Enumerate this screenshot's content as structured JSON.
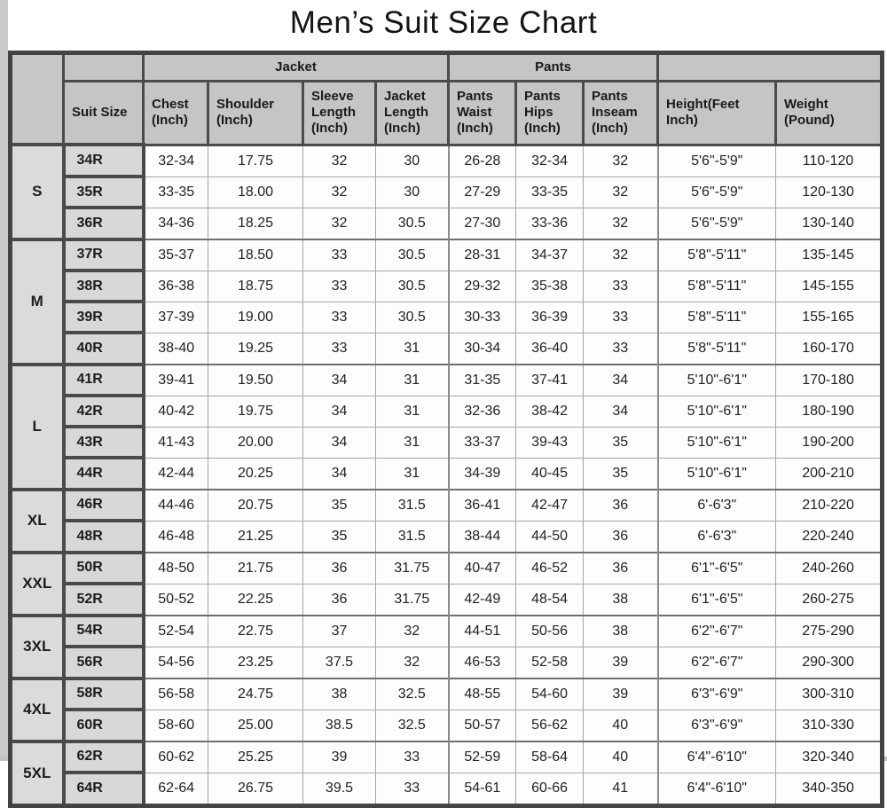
{
  "title": "Men’s Suit Size Chart",
  "colors": {
    "header_bg": "#c5c5c5",
    "size_cell_bg": "#d8d8d8",
    "data_cell_bg": "#fdfdfd",
    "thick_border": "#4a4a4a",
    "thin_border": "#a6a6a6",
    "page_edge": "#c9c9c9"
  },
  "table": {
    "sections": {
      "jacket": "Jacket",
      "pants": "Pants"
    },
    "columns": [
      "Suit Size",
      "Chest (Inch)",
      "Shoulder (Inch)",
      "Sleeve Length (Inch)",
      "Jacket Length (Inch)",
      "Pants Waist (Inch)",
      "Pants Hips (Inch)",
      "Pants Inseam (Inch)",
      "Height(Feet Inch)",
      "Weight (Pound)"
    ],
    "groups": [
      {
        "label": "S",
        "rows": [
          {
            "size": "34R",
            "values": [
              "32-34",
              "17.75",
              "32",
              "30",
              "26-28",
              "32-34",
              "32",
              "5'6\"-5'9\"",
              "110-120"
            ]
          },
          {
            "size": "35R",
            "values": [
              "33-35",
              "18.00",
              "32",
              "30",
              "27-29",
              "33-35",
              "32",
              "5'6\"-5'9\"",
              "120-130"
            ]
          },
          {
            "size": "36R",
            "values": [
              "34-36",
              "18.25",
              "32",
              "30.5",
              "27-30",
              "33-36",
              "32",
              "5'6\"-5'9\"",
              "130-140"
            ]
          }
        ]
      },
      {
        "label": "M",
        "rows": [
          {
            "size": "37R",
            "values": [
              "35-37",
              "18.50",
              "33",
              "30.5",
              "28-31",
              "34-37",
              "32",
              "5'8\"-5'11\"",
              "135-145"
            ]
          },
          {
            "size": "38R",
            "values": [
              "36-38",
              "18.75",
              "33",
              "30.5",
              "29-32",
              "35-38",
              "33",
              "5'8\"-5'11\"",
              "145-155"
            ]
          },
          {
            "size": "39R",
            "values": [
              "37-39",
              "19.00",
              "33",
              "30.5",
              "30-33",
              "36-39",
              "33",
              "5'8\"-5'11\"",
              "155-165"
            ]
          },
          {
            "size": "40R",
            "values": [
              "38-40",
              "19.25",
              "33",
              "31",
              "30-34",
              "36-40",
              "33",
              "5'8\"-5'11\"",
              "160-170"
            ]
          }
        ]
      },
      {
        "label": "L",
        "rows": [
          {
            "size": "41R",
            "values": [
              "39-41",
              "19.50",
              "34",
              "31",
              "31-35",
              "37-41",
              "34",
              "5'10\"-6'1\"",
              "170-180"
            ]
          },
          {
            "size": "42R",
            "values": [
              "40-42",
              "19.75",
              "34",
              "31",
              "32-36",
              "38-42",
              "34",
              "5'10\"-6'1\"",
              "180-190"
            ]
          },
          {
            "size": "43R",
            "values": [
              "41-43",
              "20.00",
              "34",
              "31",
              "33-37",
              "39-43",
              "35",
              "5'10\"-6'1\"",
              "190-200"
            ]
          },
          {
            "size": "44R",
            "values": [
              "42-44",
              "20.25",
              "34",
              "31",
              "34-39",
              "40-45",
              "35",
              "5'10\"-6'1\"",
              "200-210"
            ]
          }
        ]
      },
      {
        "label": "XL",
        "rows": [
          {
            "size": "46R",
            "values": [
              "44-46",
              "20.75",
              "35",
              "31.5",
              "36-41",
              "42-47",
              "36",
              "6'-6'3\"",
              "210-220"
            ]
          },
          {
            "size": "48R",
            "values": [
              "46-48",
              "21.25",
              "35",
              "31.5",
              "38-44",
              "44-50",
              "36",
              "6'-6'3\"",
              "220-240"
            ]
          }
        ]
      },
      {
        "label": "XXL",
        "rows": [
          {
            "size": "50R",
            "values": [
              "48-50",
              "21.75",
              "36",
              "31.75",
              "40-47",
              "46-52",
              "36",
              "6'1\"-6'5\"",
              "240-260"
            ]
          },
          {
            "size": "52R",
            "values": [
              "50-52",
              "22.25",
              "36",
              "31.75",
              "42-49",
              "48-54",
              "38",
              "6'1\"-6'5\"",
              "260-275"
            ]
          }
        ]
      },
      {
        "label": "3XL",
        "rows": [
          {
            "size": "54R",
            "values": [
              "52-54",
              "22.75",
              "37",
              "32",
              "44-51",
              "50-56",
              "38",
              "6'2\"-6'7\"",
              "275-290"
            ]
          },
          {
            "size": "56R",
            "values": [
              "54-56",
              "23.25",
              "37.5",
              "32",
              "46-53",
              "52-58",
              "39",
              "6'2\"-6'7\"",
              "290-300"
            ]
          }
        ]
      },
      {
        "label": "4XL",
        "rows": [
          {
            "size": "58R",
            "values": [
              "56-58",
              "24.75",
              "38",
              "32.5",
              "48-55",
              "54-60",
              "39",
              "6'3\"-6'9\"",
              "300-310"
            ]
          },
          {
            "size": "60R",
            "values": [
              "58-60",
              "25.00",
              "38.5",
              "32.5",
              "50-57",
              "56-62",
              "40",
              "6'3\"-6'9\"",
              "310-330"
            ]
          }
        ]
      },
      {
        "label": "5XL",
        "rows": [
          {
            "size": "62R",
            "values": [
              "60-62",
              "25.25",
              "39",
              "33",
              "52-59",
              "58-64",
              "40",
              "6'4\"-6'10\"",
              "320-340"
            ]
          },
          {
            "size": "64R",
            "values": [
              "62-64",
              "26.75",
              "39.5",
              "33",
              "54-61",
              "60-66",
              "41",
              "6'4\"-6'10\"",
              "340-350"
            ]
          }
        ]
      }
    ]
  }
}
